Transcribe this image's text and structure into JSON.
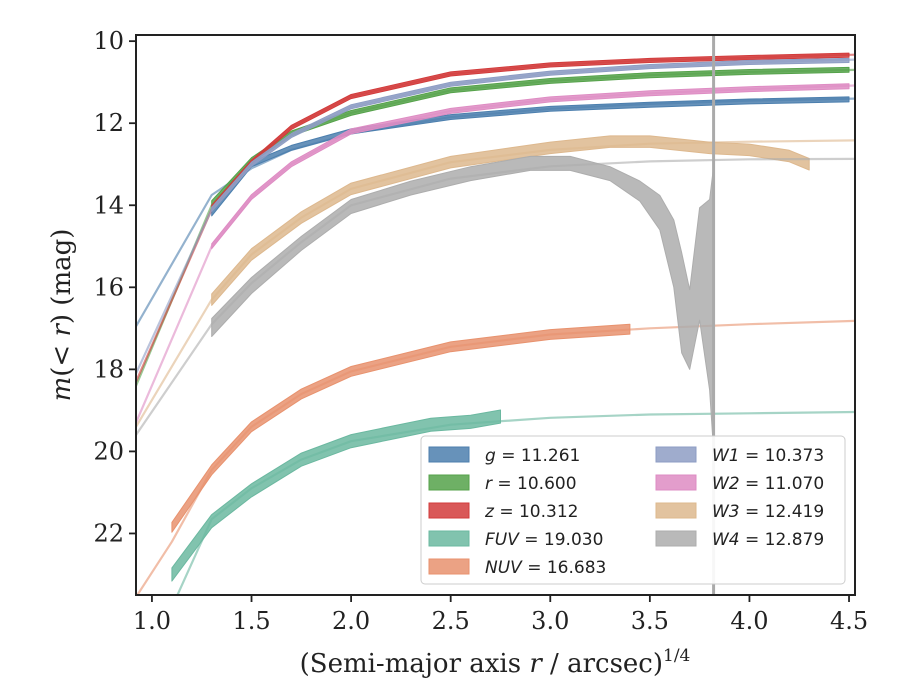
{
  "chart_data": {
    "type": "line",
    "title": "",
    "xlabel": "(Semi-major axis r / arcsec)",
    "xlabel_italic_var": "r",
    "xlabel_prefix": "(Semi-major axis ",
    "xlabel_suffix": " / arcsec)",
    "xlabel_sup": "1/4",
    "ylabel": "m(< r) (mag)",
    "ylabel_func": "m",
    "ylabel_open": "(",
    "ylabel_lt": "< ",
    "ylabel_var": "r",
    "ylabel_close": ")",
    "ylabel_units": " (mag)",
    "xlim": [
      0.92,
      4.53
    ],
    "ylim": [
      23.5,
      9.85
    ],
    "y_inverted": true,
    "x_ticks": [
      "1.0",
      "1.5",
      "2.0",
      "2.5",
      "3.0",
      "3.5",
      "4.0",
      "4.5"
    ],
    "x_tick_values": [
      1.0,
      1.5,
      2.0,
      2.5,
      3.0,
      3.5,
      4.0,
      4.5
    ],
    "y_ticks": [
      "10",
      "12",
      "14",
      "16",
      "18",
      "20",
      "22"
    ],
    "y_tick_values": [
      10,
      12,
      14,
      16,
      18,
      20,
      22
    ],
    "vline_x": 3.82,
    "vline_color": "#aaaaaa",
    "grid": false,
    "legend_location": "lower-right",
    "series": [
      {
        "name": "g = 11.261",
        "sym": "g",
        "val": "11.261",
        "color": "#4C7FAE",
        "fit": [
          [
            0.92,
            16.95
          ],
          [
            1.3,
            13.75
          ],
          [
            1.5,
            13.1
          ],
          [
            1.7,
            12.65
          ],
          [
            2.0,
            12.25
          ],
          [
            2.5,
            11.85
          ],
          [
            3.0,
            11.65
          ],
          [
            3.5,
            11.53
          ],
          [
            4.0,
            11.45
          ],
          [
            4.53,
            11.4
          ]
        ],
        "data": [
          [
            1.3,
            14.2
          ],
          [
            1.5,
            13.0
          ],
          [
            1.7,
            12.6
          ],
          [
            2.0,
            12.2
          ],
          [
            2.5,
            11.85
          ],
          [
            3.0,
            11.65
          ],
          [
            3.5,
            11.55
          ],
          [
            4.0,
            11.47
          ],
          [
            4.5,
            11.42
          ]
        ],
        "band": 0.06
      },
      {
        "name": "r = 10.600",
        "sym": "r",
        "val": "10.600",
        "color": "#55A24A",
        "fit": [
          [
            0.92,
            18.4
          ],
          [
            1.3,
            14.0
          ],
          [
            1.5,
            12.9
          ],
          [
            1.7,
            12.25
          ],
          [
            2.0,
            11.75
          ],
          [
            2.5,
            11.2
          ],
          [
            3.0,
            10.97
          ],
          [
            3.5,
            10.83
          ],
          [
            4.0,
            10.75
          ],
          [
            4.53,
            10.7
          ]
        ],
        "data": [
          [
            1.3,
            13.95
          ],
          [
            1.5,
            12.9
          ],
          [
            1.7,
            12.25
          ],
          [
            2.0,
            11.75
          ],
          [
            2.5,
            11.2
          ],
          [
            3.0,
            10.97
          ],
          [
            3.5,
            10.83
          ],
          [
            4.0,
            10.75
          ],
          [
            4.5,
            10.7
          ]
        ],
        "band": 0.06
      },
      {
        "name": "z = 10.312",
        "sym": "z",
        "val": "10.312",
        "color": "#D23B3B",
        "fit": [
          [
            0.92,
            18.3
          ],
          [
            1.3,
            14.1
          ],
          [
            1.5,
            12.95
          ],
          [
            1.7,
            12.1
          ],
          [
            2.0,
            11.35
          ],
          [
            2.5,
            10.8
          ],
          [
            3.0,
            10.58
          ],
          [
            3.5,
            10.47
          ],
          [
            4.0,
            10.4
          ],
          [
            4.53,
            10.33
          ]
        ],
        "data": [
          [
            1.3,
            14.05
          ],
          [
            1.5,
            12.95
          ],
          [
            1.7,
            12.1
          ],
          [
            2.0,
            11.35
          ],
          [
            2.5,
            10.8
          ],
          [
            3.0,
            10.58
          ],
          [
            3.5,
            10.47
          ],
          [
            4.0,
            10.4
          ],
          [
            4.5,
            10.34
          ]
        ],
        "band": 0.05
      },
      {
        "name": "FUV = 19.030",
        "sym": "FUV",
        "val": "19.030",
        "color": "#6BB8A0",
        "fit": [
          [
            1.1,
            23.8
          ],
          [
            1.3,
            21.65
          ],
          [
            1.5,
            20.9
          ],
          [
            1.75,
            20.2
          ],
          [
            2.0,
            19.75
          ],
          [
            2.5,
            19.35
          ],
          [
            3.0,
            19.18
          ],
          [
            3.5,
            19.1
          ],
          [
            4.0,
            19.07
          ],
          [
            4.53,
            19.04
          ]
        ],
        "data": [
          [
            1.1,
            23.0
          ],
          [
            1.3,
            21.7
          ],
          [
            1.5,
            20.95
          ],
          [
            1.75,
            20.2
          ],
          [
            2.0,
            19.75
          ],
          [
            2.2,
            19.55
          ],
          [
            2.4,
            19.35
          ],
          [
            2.6,
            19.28
          ],
          [
            2.75,
            19.15
          ]
        ],
        "band": 0.16
      },
      {
        "name": "NUV = 16.683",
        "sym": "NUV",
        "val": "16.683",
        "color": "#E8926E",
        "fit": [
          [
            0.92,
            23.55
          ],
          [
            1.1,
            22.2
          ],
          [
            1.3,
            20.45
          ],
          [
            1.5,
            19.4
          ],
          [
            1.75,
            18.6
          ],
          [
            2.0,
            18.05
          ],
          [
            2.5,
            17.45
          ],
          [
            3.0,
            17.15
          ],
          [
            3.5,
            17.0
          ],
          [
            4.0,
            16.9
          ],
          [
            4.53,
            16.82
          ]
        ],
        "data": [
          [
            1.1,
            21.85
          ],
          [
            1.3,
            20.45
          ],
          [
            1.5,
            19.4
          ],
          [
            1.75,
            18.6
          ],
          [
            2.0,
            18.05
          ],
          [
            2.5,
            17.45
          ],
          [
            3.0,
            17.15
          ],
          [
            3.4,
            17.02
          ]
        ],
        "band": 0.12
      },
      {
        "name": "W1 = 10.373",
        "sym": "W1",
        "val": "10.373",
        "color": "#8E9DC4",
        "fit": [
          [
            0.92,
            18.1
          ],
          [
            1.3,
            14.1
          ],
          [
            1.5,
            13.0
          ],
          [
            1.7,
            12.3
          ],
          [
            2.0,
            11.6
          ],
          [
            2.5,
            11.05
          ],
          [
            3.0,
            10.78
          ],
          [
            3.5,
            10.62
          ],
          [
            4.0,
            10.52
          ],
          [
            4.53,
            10.45
          ]
        ],
        "data": [
          [
            1.3,
            14.1
          ],
          [
            1.5,
            13.0
          ],
          [
            1.7,
            12.3
          ],
          [
            2.0,
            11.6
          ],
          [
            2.5,
            11.05
          ],
          [
            3.0,
            10.78
          ],
          [
            3.5,
            10.62
          ],
          [
            4.0,
            10.52
          ],
          [
            4.5,
            10.47
          ]
        ],
        "band": 0.05
      },
      {
        "name": "W2 = 11.070",
        "sym": "W2",
        "val": "11.070",
        "color": "#DE8CC3",
        "fit": [
          [
            0.92,
            19.3
          ],
          [
            1.3,
            15.0
          ],
          [
            1.5,
            13.8
          ],
          [
            1.7,
            13.0
          ],
          [
            2.0,
            12.2
          ],
          [
            2.5,
            11.7
          ],
          [
            3.0,
            11.42
          ],
          [
            3.5,
            11.27
          ],
          [
            4.0,
            11.17
          ],
          [
            4.53,
            11.08
          ]
        ],
        "data": [
          [
            1.3,
            15.0
          ],
          [
            1.5,
            13.8
          ],
          [
            1.7,
            13.0
          ],
          [
            2.0,
            12.2
          ],
          [
            2.5,
            11.7
          ],
          [
            3.0,
            11.42
          ],
          [
            3.5,
            11.27
          ],
          [
            4.0,
            11.17
          ],
          [
            4.5,
            11.1
          ]
        ],
        "band": 0.06
      },
      {
        "name": "W3 = 12.419",
        "sym": "W3",
        "val": "12.419",
        "color": "#DDB88E",
        "fit": [
          [
            0.92,
            19.4
          ],
          [
            1.3,
            16.3
          ],
          [
            1.5,
            15.2
          ],
          [
            1.75,
            14.3
          ],
          [
            2.0,
            13.6
          ],
          [
            2.5,
            12.95
          ],
          [
            3.0,
            12.65
          ],
          [
            3.5,
            12.5
          ],
          [
            4.0,
            12.45
          ],
          [
            4.53,
            12.42
          ]
        ],
        "data": [
          [
            1.3,
            16.3
          ],
          [
            1.5,
            15.2
          ],
          [
            1.75,
            14.3
          ],
          [
            2.0,
            13.6
          ],
          [
            2.5,
            12.95
          ],
          [
            3.0,
            12.6
          ],
          [
            3.3,
            12.45
          ],
          [
            3.5,
            12.45
          ],
          [
            3.8,
            12.6
          ],
          [
            4.0,
            12.65
          ],
          [
            4.2,
            12.8
          ],
          [
            4.3,
            13.0
          ]
        ],
        "band": 0.14
      },
      {
        "name": "W4 = 12.879",
        "sym": "W4",
        "val": "12.879",
        "color": "#ADADAD",
        "fit": [
          [
            0.92,
            19.6
          ],
          [
            1.3,
            16.9
          ],
          [
            1.5,
            15.9
          ],
          [
            1.75,
            14.9
          ],
          [
            2.0,
            14.0
          ],
          [
            2.5,
            13.35
          ],
          [
            3.0,
            13.05
          ],
          [
            3.5,
            12.93
          ],
          [
            4.0,
            12.88
          ],
          [
            4.53,
            12.87
          ]
        ],
        "data": [
          [
            1.3,
            16.9
          ],
          [
            1.5,
            15.9
          ],
          [
            1.75,
            14.9
          ],
          [
            2.0,
            14.0
          ],
          [
            2.3,
            13.55
          ],
          [
            2.6,
            13.2
          ],
          [
            2.9,
            12.95
          ],
          [
            3.1,
            12.95
          ],
          [
            3.3,
            13.2
          ],
          [
            3.45,
            13.55
          ],
          [
            3.55,
            13.9
          ],
          [
            3.62,
            14.5
          ],
          [
            3.66,
            15.3
          ],
          [
            3.7,
            16.2
          ],
          [
            3.75,
            14.2
          ],
          [
            3.8,
            14.0
          ],
          [
            3.82,
            13.2
          ]
        ],
        "data_lower": [
          [
            1.3,
            17.2
          ],
          [
            1.5,
            16.15
          ],
          [
            1.75,
            15.1
          ],
          [
            2.0,
            14.2
          ],
          [
            2.3,
            13.75
          ],
          [
            2.6,
            13.4
          ],
          [
            2.9,
            13.15
          ],
          [
            3.1,
            13.15
          ],
          [
            3.3,
            13.4
          ],
          [
            3.45,
            13.9
          ],
          [
            3.55,
            14.6
          ],
          [
            3.62,
            16.0
          ],
          [
            3.66,
            17.6
          ],
          [
            3.7,
            18.0
          ],
          [
            3.75,
            16.8
          ],
          [
            3.8,
            18.5
          ],
          [
            3.82,
            20.0
          ]
        ],
        "band": 0.14
      }
    ]
  }
}
